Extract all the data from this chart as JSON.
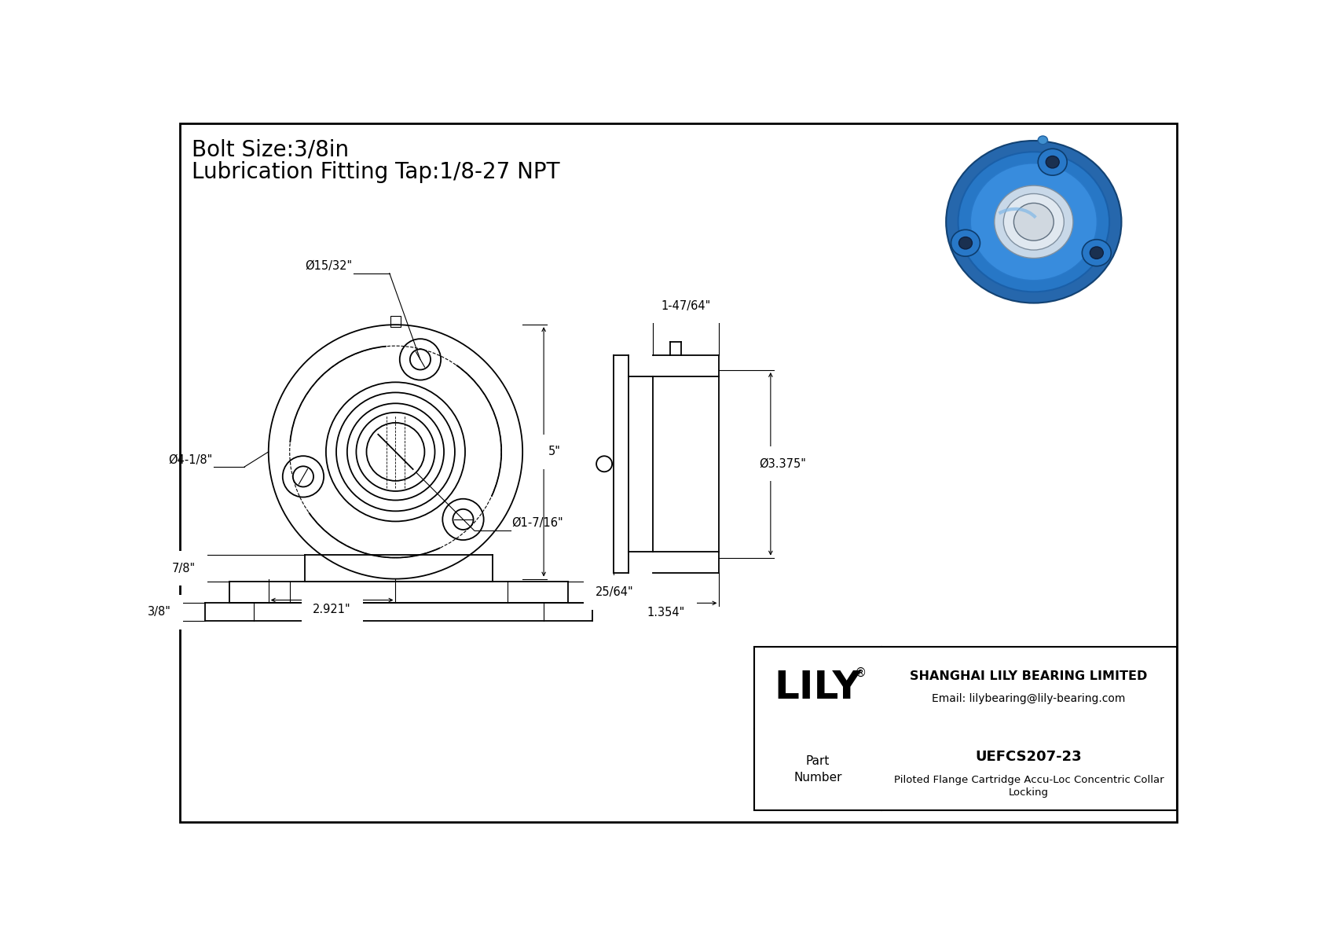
{
  "bg_color": "#ffffff",
  "line_color": "#000000",
  "title_line1": "Bolt Size:3/8in",
  "title_line2": "Lubrication Fitting Tap:1/8-27 NPT",
  "title_fontsize": 20,
  "dim_fontsize": 10.5,
  "company_name": "SHANGHAI LILY BEARING LIMITED",
  "company_email": "Email: lilybearing@lily-bearing.com",
  "part_number": "UEFCS207-23",
  "part_description1": "Piloted Flange Cartridge Accu-Loc Concentric Collar",
  "part_description2": "Locking",
  "brand": "LILY",
  "dim_bolt_circle": "Ø15/32\"",
  "dim_outer_dia": "Ø4-1/8\"",
  "dim_height": "5\"",
  "dim_bolt_hole": "Ø1-7/16\"",
  "dim_width": "2.921\"",
  "dim_side_width": "1-47/64\"",
  "dim_side_height": "Ø3.375\"",
  "dim_side_depth": "1.354\"",
  "dim_bottom_h1": "7/8\"",
  "dim_bottom_h2": "25/64\"",
  "dim_bottom_h3": "3/8\""
}
